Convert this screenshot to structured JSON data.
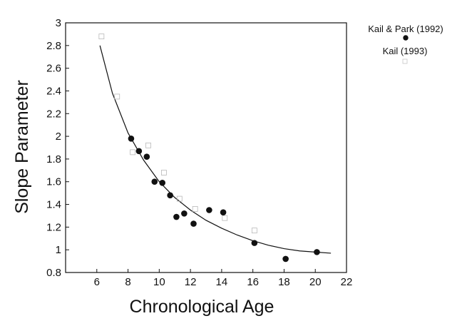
{
  "chart_data": {
    "type": "scatter",
    "title": "",
    "xlabel": "Chronological Age",
    "ylabel": "Slope Parameter",
    "xlim": [
      4,
      22
    ],
    "ylim": [
      0.8,
      3.0
    ],
    "x_ticks": [
      6,
      8,
      10,
      12,
      14,
      16,
      18,
      20,
      22
    ],
    "y_ticks": [
      0.8,
      1.0,
      1.2,
      1.4,
      1.6,
      1.8,
      2.0,
      2.2,
      2.4,
      2.6,
      2.8,
      3.0
    ],
    "x_tick_labels": [
      "6",
      "8",
      "10",
      "12",
      "14",
      "16",
      "18",
      "20",
      "22"
    ],
    "y_tick_labels": [
      "0.8",
      "1",
      "1.2",
      "1.4",
      "1.6",
      "1.8",
      "2",
      "2.2",
      "2.4",
      "2.6",
      "2.8",
      "3"
    ],
    "grid": false,
    "legend_position": "top-right outside plot",
    "series": [
      {
        "name": "Kail & Park (1992)",
        "marker": "filled-circle",
        "color": "#111111",
        "points": [
          {
            "x": 8.2,
            "y": 1.98
          },
          {
            "x": 8.7,
            "y": 1.87
          },
          {
            "x": 9.2,
            "y": 1.82
          },
          {
            "x": 9.7,
            "y": 1.6
          },
          {
            "x": 10.2,
            "y": 1.59
          },
          {
            "x": 10.7,
            "y": 1.48
          },
          {
            "x": 11.1,
            "y": 1.29
          },
          {
            "x": 11.6,
            "y": 1.32
          },
          {
            "x": 12.2,
            "y": 1.23
          },
          {
            "x": 13.2,
            "y": 1.35
          },
          {
            "x": 14.1,
            "y": 1.33
          },
          {
            "x": 16.1,
            "y": 1.06
          },
          {
            "x": 18.1,
            "y": 0.92
          },
          {
            "x": 20.1,
            "y": 0.98
          }
        ]
      },
      {
        "name": "Kail (1993)",
        "marker": "faint-square",
        "color": "#b8b8b8",
        "points": [
          {
            "x": 6.3,
            "y": 2.88
          },
          {
            "x": 7.3,
            "y": 2.35
          },
          {
            "x": 8.3,
            "y": 1.86
          },
          {
            "x": 9.3,
            "y": 1.92
          },
          {
            "x": 10.3,
            "y": 1.68
          },
          {
            "x": 11.3,
            "y": 1.45
          },
          {
            "x": 12.3,
            "y": 1.36
          },
          {
            "x": 14.2,
            "y": 1.28
          },
          {
            "x": 16.1,
            "y": 1.17
          }
        ]
      }
    ],
    "fit_curve": {
      "color": "#111111",
      "x": [
        6.2,
        7,
        8,
        9,
        10,
        11,
        12,
        13,
        14,
        15,
        16,
        17,
        18,
        19,
        20,
        21
      ],
      "y": [
        2.8,
        2.38,
        2.03,
        1.79,
        1.6,
        1.46,
        1.35,
        1.26,
        1.19,
        1.13,
        1.08,
        1.04,
        1.01,
        0.99,
        0.98,
        0.97
      ]
    }
  }
}
